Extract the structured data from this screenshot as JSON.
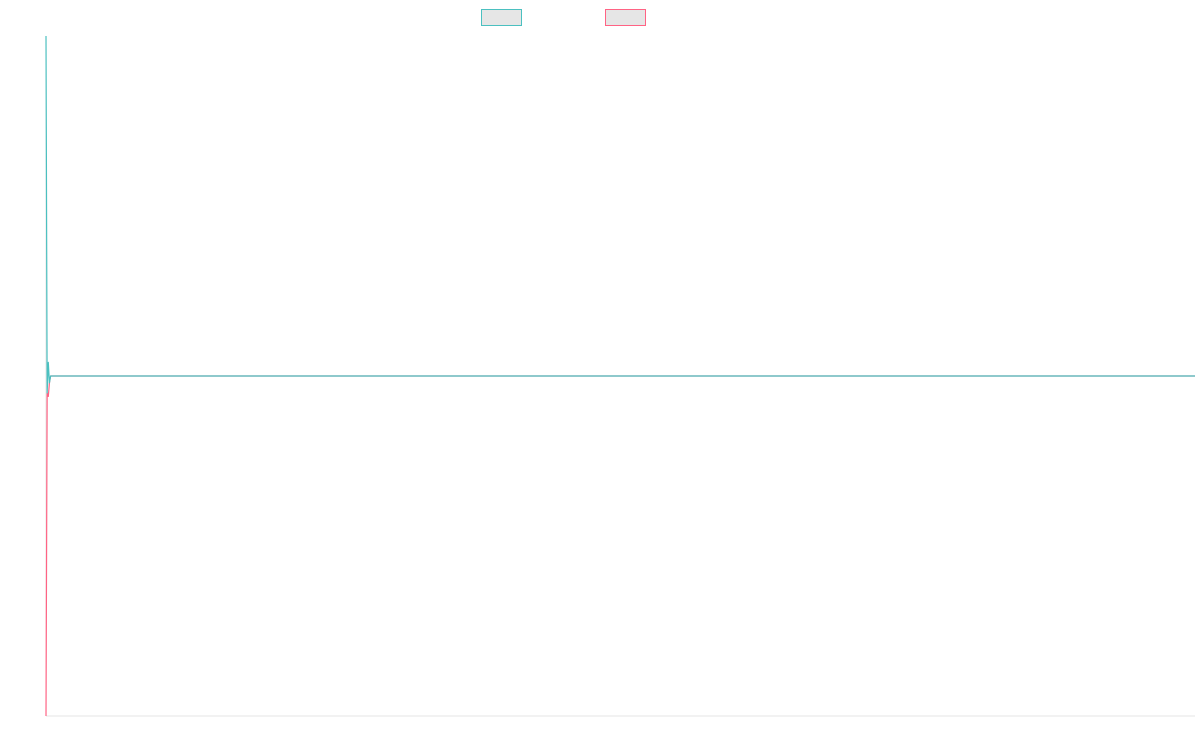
{
  "chart_data": {
    "type": "line",
    "title": "",
    "xlabel": "",
    "ylabel": "",
    "grid": false,
    "legend": "top-center",
    "xlim": [
      0,
      1000
    ],
    "ylim": [
      -1,
      1
    ],
    "series": [
      {
        "color": "#4bc0c0",
        "x": [
          0,
          1,
          2,
          3,
          4,
          1000
        ],
        "y": [
          1.0,
          -0.05,
          0.04,
          -0.02,
          0.0,
          0.0
        ]
      },
      {
        "color": "#ff6384",
        "x": [
          0,
          1,
          2,
          3,
          4,
          1000
        ],
        "y": [
          -1.0,
          -0.05,
          -0.06,
          -0.02,
          0.0,
          0.0
        ]
      }
    ]
  }
}
